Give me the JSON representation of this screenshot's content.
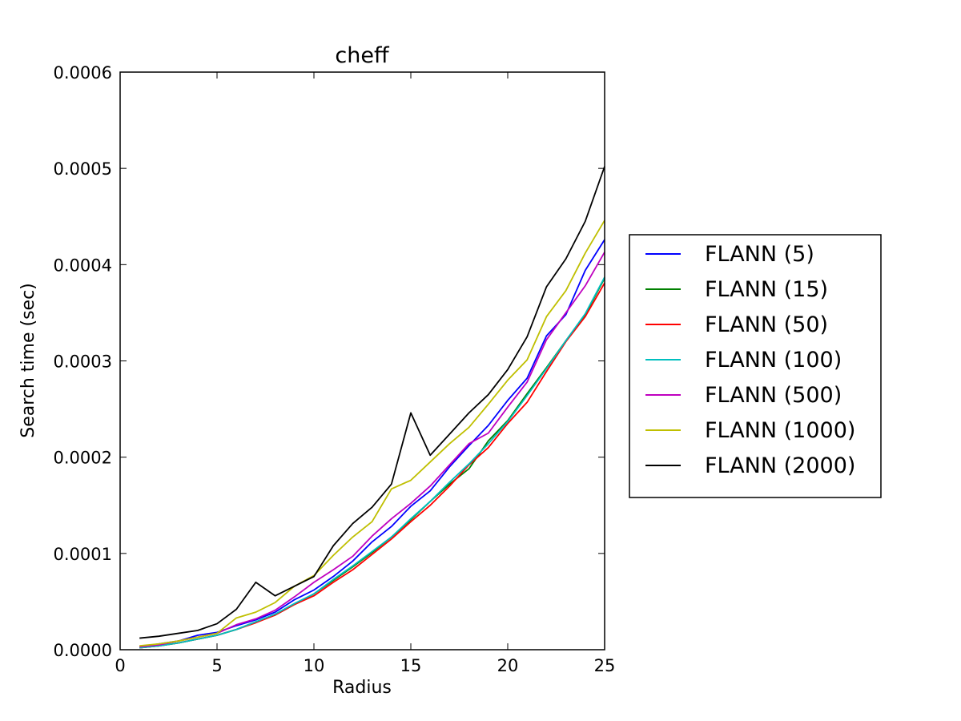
{
  "chart_data": {
    "type": "line",
    "title": "cheff",
    "xlabel": "Radius",
    "ylabel": "Search time (sec)",
    "xlim": [
      0,
      25
    ],
    "ylim": [
      0,
      0.0006
    ],
    "xticks": [
      0,
      5,
      10,
      15,
      20,
      25
    ],
    "xtick_labels": [
      "0",
      "5",
      "10",
      "15",
      "20",
      "25"
    ],
    "yticks": [
      0,
      0.0001,
      0.0002,
      0.0003,
      0.0004,
      0.0005,
      0.0006
    ],
    "ytick_labels": [
      "0.0000",
      "0.0001",
      "0.0002",
      "0.0003",
      "0.0004",
      "0.0005",
      "0.0006"
    ],
    "grid": false,
    "legend_position": "outside-right",
    "x": [
      1,
      2,
      3,
      4,
      5,
      6,
      7,
      8,
      9,
      10,
      11,
      12,
      13,
      14,
      15,
      16,
      17,
      18,
      19,
      20,
      21,
      22,
      23,
      24,
      25
    ],
    "series": [
      {
        "name": "FLANN (5)",
        "color": "#0000ff",
        "values": [
          3e-06,
          6e-06,
          9e-06,
          1.5e-05,
          1.8e-05,
          2.5e-05,
          3.1e-05,
          3.9e-05,
          5.2e-05,
          6.2e-05,
          7.6e-05,
          9.2e-05,
          0.000112,
          0.000128,
          0.000149,
          0.000165,
          0.00019,
          0.000212,
          0.000233,
          0.000259,
          0.000282,
          0.000326,
          0.000348,
          0.000394,
          0.000426
        ]
      },
      {
        "name": "FLANN (15)",
        "color": "#008000",
        "values": [
          2e-06,
          4e-06,
          7e-06,
          1.1e-05,
          1.5e-05,
          2.1e-05,
          2.9e-05,
          3.6e-05,
          4.7e-05,
          5.8e-05,
          7.2e-05,
          8.6e-05,
          0.000101,
          0.000117,
          0.000135,
          0.000154,
          0.000172,
          0.000188,
          0.000217,
          0.000238,
          0.000266,
          0.000293,
          0.000321,
          0.000348,
          0.000386
        ]
      },
      {
        "name": "FLANN (50)",
        "color": "#ff0000",
        "values": [
          2e-06,
          4e-06,
          7e-06,
          1.1e-05,
          1.5e-05,
          2.1e-05,
          2.8e-05,
          3.6e-05,
          4.7e-05,
          5.6e-05,
          7e-05,
          8.3e-05,
          9.9e-05,
          0.000115,
          0.000133,
          0.00015,
          0.00017,
          0.000192,
          0.00021,
          0.000235,
          0.000257,
          0.000289,
          0.00032,
          0.000346,
          0.000381
        ]
      },
      {
        "name": "FLANN (100)",
        "color": "#00bfbf",
        "values": [
          2e-06,
          4e-06,
          7e-06,
          1.1e-05,
          1.5e-05,
          2.1e-05,
          2.9e-05,
          3.7e-05,
          4.8e-05,
          5.8e-05,
          7.3e-05,
          8.7e-05,
          0.000102,
          0.000117,
          0.000136,
          0.000154,
          0.000174,
          0.000193,
          0.000214,
          0.000237,
          0.000264,
          0.000292,
          0.000321,
          0.000349,
          0.000387
        ]
      },
      {
        "name": "FLANN (500)",
        "color": "#bf00bf",
        "values": [
          3e-06,
          5e-06,
          9e-06,
          1.3e-05,
          1.7e-05,
          2.6e-05,
          3.2e-05,
          4.1e-05,
          5.5e-05,
          7e-05,
          8.3e-05,
          9.7e-05,
          0.000118,
          0.000136,
          0.000152,
          0.00017,
          0.000192,
          0.000214,
          0.000225,
          0.000252,
          0.000278,
          0.000322,
          0.00035,
          0.000378,
          0.000413
        ]
      },
      {
        "name": "FLANN (1000)",
        "color": "#bfbf00",
        "values": [
          4e-06,
          6e-06,
          9e-06,
          1.3e-05,
          1.7e-05,
          3.3e-05,
          3.9e-05,
          4.9e-05,
          6.6e-05,
          7.7e-05,
          9.8e-05,
          0.000117,
          0.000133,
          0.000167,
          0.000176,
          0.000195,
          0.000214,
          0.000231,
          0.000255,
          0.00028,
          0.000301,
          0.000346,
          0.000373,
          0.000412,
          0.000446
        ]
      },
      {
        "name": "FLANN (2000)",
        "color": "#000000",
        "values": [
          1.2e-05,
          1.4e-05,
          1.7e-05,
          2e-05,
          2.7e-05,
          4.2e-05,
          7e-05,
          5.6e-05,
          6.6e-05,
          7.6e-05,
          0.000108,
          0.000131,
          0.000148,
          0.000172,
          0.000246,
          0.000202,
          0.000224,
          0.000246,
          0.000265,
          0.000291,
          0.000325,
          0.000377,
          0.000406,
          0.000445,
          0.000502
        ]
      }
    ]
  }
}
